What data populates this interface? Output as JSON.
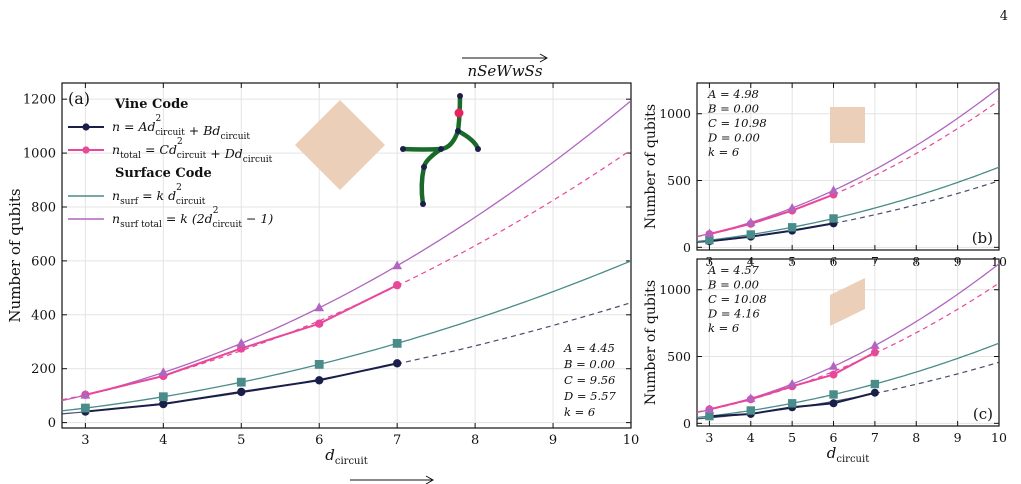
{
  "page": {
    "number": "4",
    "arrow_label": "nSeWwSs"
  },
  "colors": {
    "vine_n": "#1a1f4a",
    "vine_total": "#e8479a",
    "surf": "#4a8c8a",
    "surf_total": "#b065c0",
    "grid": "#e3e3e3",
    "diamond": "#ebcfb8",
    "vine_icon": "#1a6b2a",
    "vine_icon_dot": "#e8245f"
  },
  "legend": {
    "vine_header": "Vine Code",
    "vine_n": "n = Ad²circuit + Bdcircuit",
    "vine_total": "ntotal = Cd²circuit + Ddcircuit",
    "surf_header": "Surface Code",
    "surf": "nsurf = k d²circuit",
    "surf_total": "nsurf total = k (2d²circuit − 1)"
  },
  "chart_data": [
    {
      "panel": "(a)",
      "type": "line",
      "xlabel": "dcircuit",
      "ylabel": "Number of qubits",
      "xlim": [
        2.7,
        10
      ],
      "ylim": [
        -20,
        1260
      ],
      "xticks": [
        3,
        4,
        5,
        6,
        7,
        8,
        9,
        10
      ],
      "yticks": [
        0,
        200,
        400,
        600,
        800,
        1000,
        1200
      ],
      "params": {
        "A": 4.45,
        "B": 0.0,
        "C": 9.56,
        "D": 5.57,
        "k": 6
      },
      "param_labels": [
        "A = 4.45",
        "B = 0.00",
        "C = 9.56",
        "D = 5.57",
        "k = 6"
      ],
      "x": [
        3,
        4,
        5,
        6,
        7
      ],
      "series": [
        {
          "name": "vine_n",
          "values": [
            41,
            69,
            114,
            157,
            220
          ]
        },
        {
          "name": "vine_total",
          "values": [
            103,
            173,
            275,
            367,
            510
          ]
        },
        {
          "name": "surf",
          "values": [
            54,
            96,
            150,
            216,
            294
          ]
        },
        {
          "name": "surf_total",
          "values": [
            102,
            186,
            294,
            426,
            582
          ]
        }
      ]
    },
    {
      "panel": "(b)",
      "type": "line",
      "xlabel": "",
      "ylabel": "Number of qubits",
      "xlim": [
        2.7,
        10
      ],
      "ylim": [
        -20,
        1230
      ],
      "xticks": [
        3,
        4,
        5,
        6,
        7,
        8,
        9,
        10
      ],
      "yticks": [
        0,
        500,
        1000
      ],
      "params": {
        "A": 4.98,
        "B": 0.0,
        "C": 10.98,
        "D": 0.0,
        "k": 6
      },
      "param_labels": [
        "A = 4.98",
        "B = 0.00",
        "C = 10.98",
        "D = 0.00",
        "k = 6"
      ],
      "x": [
        3,
        4,
        5,
        6
      ],
      "series": [
        {
          "name": "vine_n",
          "values": [
            45,
            80,
            125,
            179
          ]
        },
        {
          "name": "vine_total",
          "values": [
            99,
            176,
            275,
            395
          ]
        },
        {
          "name": "surf",
          "values": [
            54,
            96,
            150,
            216
          ]
        },
        {
          "name": "surf_total",
          "values": [
            102,
            186,
            294,
            426
          ]
        }
      ]
    },
    {
      "panel": "(c)",
      "type": "line",
      "xlabel": "dcircuit",
      "ylabel": "Number of qubits",
      "xlim": [
        2.7,
        10
      ],
      "ylim": [
        -20,
        1230
      ],
      "xticks": [
        3,
        4,
        5,
        6,
        7,
        8,
        9,
        10
      ],
      "yticks": [
        0,
        500,
        1000
      ],
      "params": {
        "A": 4.57,
        "B": 0.0,
        "C": 10.08,
        "D": 4.16,
        "k": 6
      },
      "param_labels": [
        "A = 4.57",
        "B = 0.00",
        "C = 10.08",
        "D = 4.16",
        "k = 6"
      ],
      "x": [
        3,
        4,
        5,
        6,
        7
      ],
      "series": [
        {
          "name": "vine_n",
          "values": [
            52,
            70,
            120,
            150,
            229
          ]
        },
        {
          "name": "vine_total",
          "values": [
            105,
            180,
            277,
            365,
            531
          ]
        },
        {
          "name": "surf",
          "values": [
            54,
            96,
            150,
            216,
            294
          ]
        },
        {
          "name": "surf_total",
          "values": [
            102,
            186,
            294,
            426,
            582
          ]
        }
      ]
    }
  ]
}
